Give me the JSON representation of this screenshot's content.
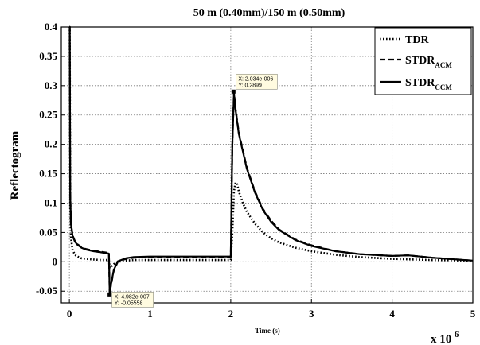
{
  "chart_data": {
    "type": "line",
    "title": "50 m (0.40mm)/150 m (0.50mm)",
    "xlabel": "Time (s)",
    "ylabel": "Reflectogram",
    "x_multiplier": "x 10",
    "x_multiplier_exp": "-6",
    "xlim": [
      -0.1,
      5
    ],
    "ylim": [
      -0.07,
      0.4
    ],
    "xticks": [
      0,
      1,
      2,
      3,
      4,
      5
    ],
    "yticks": [
      -0.05,
      0,
      0.05,
      0.1,
      0.15,
      0.2,
      0.25,
      0.3,
      0.35,
      0.4
    ],
    "xtick_labels": [
      "0",
      "1",
      "2",
      "3",
      "4",
      "5"
    ],
    "ytick_labels": [
      "-0.05",
      "0",
      "0.05",
      "0.1",
      "0.15",
      "0.2",
      "0.25",
      "0.3",
      "0.35",
      "0.4"
    ],
    "grid": true,
    "legend_position": "top-right",
    "series": [
      {
        "name": "TDR",
        "name_sub": "",
        "dash": "dotted",
        "x": [
          0,
          0.005,
          0.01,
          0.02,
          0.04,
          0.07,
          0.1,
          0.15,
          0.2,
          0.3,
          0.4,
          0.49,
          0.5,
          0.51,
          0.55,
          0.6,
          0.7,
          0.8,
          1.0,
          1.5,
          2.0,
          2.02,
          2.04,
          2.06,
          2.08,
          2.1,
          2.15,
          2.2,
          2.3,
          2.4,
          2.5,
          2.6,
          2.8,
          3.0,
          3.3,
          3.6,
          4.0,
          4.5,
          5.0
        ],
        "y": [
          0.4,
          0.4,
          0.1,
          0.04,
          0.02,
          0.012,
          0.009,
          0.006,
          0.005,
          0.004,
          0.003,
          0.003,
          -0.01,
          -0.009,
          -0.004,
          0.0,
          0.002,
          0.003,
          0.003,
          0.003,
          0.003,
          0.05,
          0.12,
          0.135,
          0.132,
          0.12,
          0.1,
          0.085,
          0.065,
          0.05,
          0.04,
          0.033,
          0.024,
          0.018,
          0.012,
          0.008,
          0.005,
          0.003,
          0.002
        ]
      },
      {
        "name": "STDR",
        "name_sub": "ACM",
        "dash": "dashed",
        "x": [
          0,
          0.005,
          0.01,
          0.02,
          0.04,
          0.07,
          0.1,
          0.15,
          0.2,
          0.3,
          0.4,
          0.49,
          0.5,
          0.51,
          0.55,
          0.6,
          0.7,
          0.8,
          1.0,
          1.5,
          2.0,
          2.02,
          2.04,
          2.06,
          2.08,
          2.1,
          2.15,
          2.2,
          2.3,
          2.4,
          2.5,
          2.6,
          2.8,
          3.0,
          3.3,
          3.6,
          4.0,
          4.2,
          4.5,
          5.0
        ],
        "y": [
          0.4,
          0.4,
          0.12,
          0.065,
          0.045,
          0.035,
          0.03,
          0.025,
          0.022,
          0.019,
          0.017,
          0.015,
          -0.0556,
          -0.045,
          -0.015,
          0.0,
          0.005,
          0.007,
          0.008,
          0.008,
          0.008,
          0.2,
          0.2899,
          0.26,
          0.24,
          0.22,
          0.19,
          0.16,
          0.12,
          0.09,
          0.07,
          0.055,
          0.038,
          0.028,
          0.018,
          0.013,
          0.01,
          0.011,
          0.007,
          0.002
        ]
      },
      {
        "name": "STDR",
        "name_sub": "CCM",
        "dash": "solid",
        "x": [
          0,
          0.005,
          0.01,
          0.02,
          0.04,
          0.07,
          0.1,
          0.15,
          0.2,
          0.3,
          0.4,
          0.49,
          0.5,
          0.51,
          0.55,
          0.6,
          0.7,
          0.8,
          1.0,
          1.5,
          2.0,
          2.02,
          2.04,
          2.06,
          2.08,
          2.1,
          2.15,
          2.2,
          2.3,
          2.4,
          2.5,
          2.6,
          2.8,
          3.0,
          3.3,
          3.6,
          4.0,
          4.2,
          4.5,
          5.0
        ],
        "y": [
          0.4,
          0.4,
          0.11,
          0.063,
          0.044,
          0.034,
          0.029,
          0.024,
          0.021,
          0.018,
          0.016,
          0.014,
          -0.053,
          -0.043,
          -0.014,
          0.001,
          0.006,
          0.008,
          0.009,
          0.009,
          0.009,
          0.2,
          0.287,
          0.258,
          0.238,
          0.218,
          0.188,
          0.158,
          0.118,
          0.088,
          0.068,
          0.054,
          0.037,
          0.027,
          0.018,
          0.013,
          0.01,
          0.011,
          0.007,
          0.002
        ]
      }
    ],
    "datatips": [
      {
        "x": 2.034,
        "y": 0.2899,
        "line1": "X: 2.034e-006",
        "line2": "Y: 0.2899",
        "anchor": "top-right"
      },
      {
        "x": 0.4982,
        "y": -0.05558,
        "line1": "X: 4.982e-007",
        "line2": "Y: -0.05558",
        "anchor": "bottom-right"
      }
    ]
  }
}
